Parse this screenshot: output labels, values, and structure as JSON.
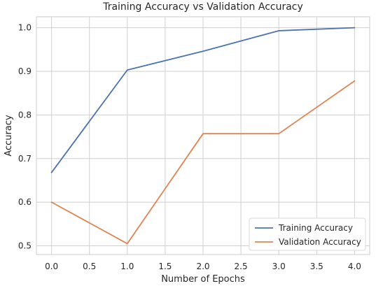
{
  "chart_data": {
    "type": "line",
    "title": "Training Accuracy vs Validation Accuracy",
    "xlabel": "Number of Epochs",
    "ylabel": "Accuracy",
    "x": [
      0,
      1,
      2,
      3,
      4
    ],
    "xlim": [
      -0.2,
      4.2
    ],
    "ylim": [
      0.48,
      1.025
    ],
    "xticks": [
      0.0,
      0.5,
      1.0,
      1.5,
      2.0,
      2.5,
      3.0,
      3.5,
      4.0
    ],
    "xtick_labels": [
      "0.0",
      "0.5",
      "1.0",
      "1.5",
      "2.0",
      "2.5",
      "3.0",
      "3.5",
      "4.0"
    ],
    "yticks": [
      0.5,
      0.6,
      0.7,
      0.8,
      0.9,
      1.0
    ],
    "ytick_labels": [
      "0.5",
      "0.6",
      "0.7",
      "0.8",
      "0.9",
      "1.0"
    ],
    "grid": true,
    "legend_position": "bottom-right",
    "series": [
      {
        "name": "Training Accuracy",
        "color": "#4c72b0",
        "values": [
          0.668,
          0.903,
          0.946,
          0.993,
          1.0
        ]
      },
      {
        "name": "Validation Accuracy",
        "color": "#dd8452",
        "values": [
          0.6,
          0.505,
          0.757,
          0.757,
          0.878
        ]
      }
    ]
  }
}
